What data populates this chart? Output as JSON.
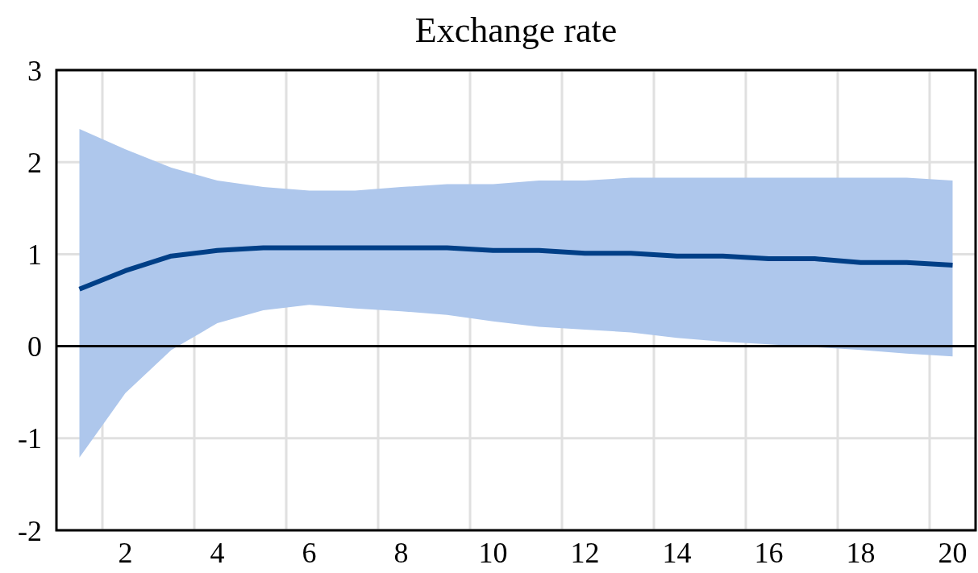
{
  "chart_data": {
    "type": "line",
    "title": "Exchange rate",
    "categories": [
      null,
      "2",
      null,
      "4",
      null,
      "6",
      null,
      "8",
      null,
      "10",
      null,
      "12",
      null,
      "14",
      null,
      "16",
      null,
      "18",
      null,
      "20"
    ],
    "series": [
      {
        "color": "#003f87",
        "values": [
          0.62,
          0.82,
          0.98,
          1.04,
          1.07,
          1.07,
          1.07,
          1.07,
          1.07,
          1.04,
          1.04,
          1.01,
          1.01,
          0.98,
          0.98,
          0.95,
          0.95,
          0.91,
          0.91,
          0.88
        ],
        "upper": [
          2.36,
          2.14,
          1.94,
          1.8,
          1.73,
          1.69,
          1.69,
          1.73,
          1.76,
          1.76,
          1.8,
          1.8,
          1.83,
          1.83,
          1.83,
          1.83,
          1.83,
          1.83,
          1.83,
          1.8
        ],
        "lower": [
          -1.21,
          -0.51,
          -0.04,
          0.25,
          0.39,
          0.45,
          0.41,
          0.38,
          0.34,
          0.27,
          0.21,
          0.18,
          0.15,
          0.09,
          0.05,
          0.02,
          -0.01,
          -0.04,
          -0.08,
          -0.11
        ]
      }
    ],
    "ylim": [
      -2,
      3
    ],
    "yticks": [
      -2,
      -1,
      0,
      1,
      2,
      3
    ],
    "grid": true,
    "marker": "none",
    "line_style": "solid",
    "ref_lines": [
      {
        "axis": "y",
        "value": 0,
        "color": "#000000"
      }
    ]
  }
}
